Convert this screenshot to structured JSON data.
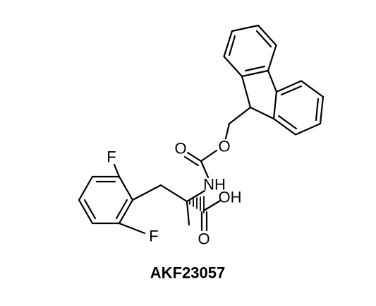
{
  "atom_labels": [
    "O",
    "O",
    "NH",
    "OH",
    "O",
    "F",
    "F"
  ],
  "caption": "AKF23057"
}
